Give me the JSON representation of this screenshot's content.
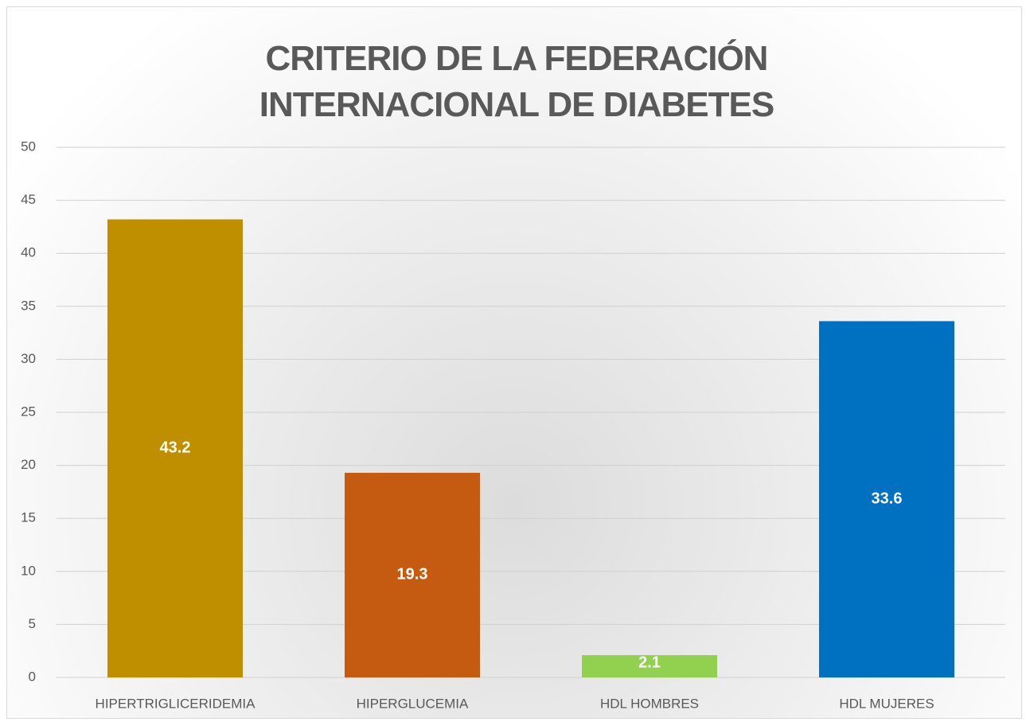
{
  "chart_data": {
    "type": "bar",
    "title": "CRITERIO DE LA FEDERACIÓN INTERNACIONAL DE DIABETES",
    "categories": [
      "HIPERTRIGLICERIDEMIA",
      "HIPERGLUCEMIA",
      "HDL HOMBRES",
      "HDL MUJERES"
    ],
    "values": [
      43.2,
      19.3,
      2.1,
      33.6
    ],
    "colors": [
      "#bf8f00",
      "#c55a11",
      "#92d050",
      "#0070c0"
    ],
    "ylim": [
      0,
      50
    ],
    "yticks": [
      0,
      5,
      10,
      15,
      20,
      25,
      30,
      35,
      40,
      45,
      50
    ],
    "grid": true
  }
}
